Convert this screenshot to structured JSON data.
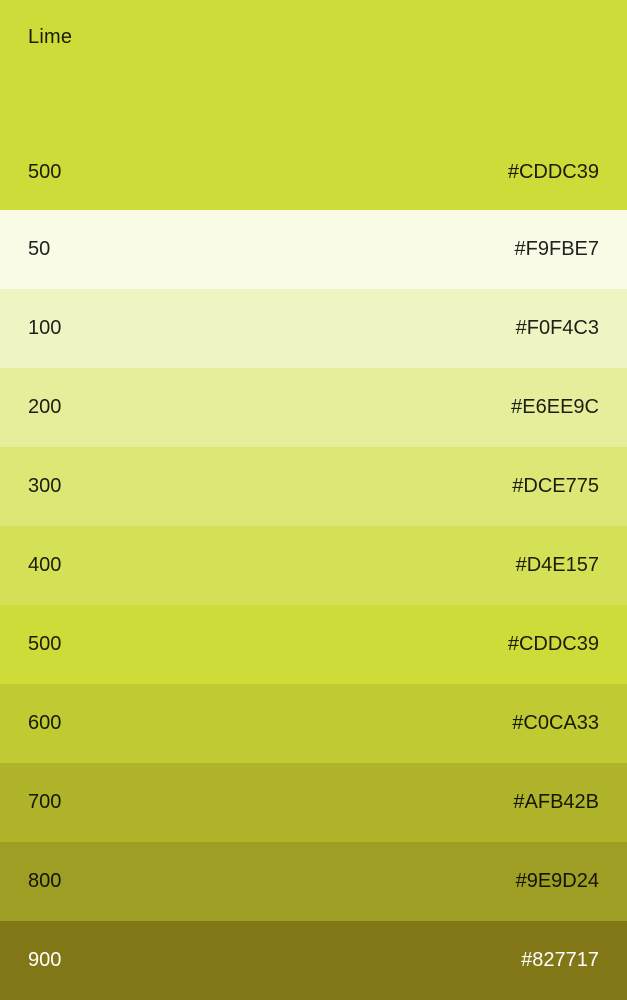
{
  "palette": {
    "name": "Lime",
    "header": {
      "shade": "500",
      "hex": "#CDDC39",
      "background": "#CDDC39",
      "text": "dark"
    },
    "rows": [
      {
        "shade": "50",
        "hex": "#F9FBE7",
        "text": "dark"
      },
      {
        "shade": "100",
        "hex": "#F0F4C3",
        "text": "dark"
      },
      {
        "shade": "200",
        "hex": "#E6EE9C",
        "text": "dark"
      },
      {
        "shade": "300",
        "hex": "#DCE775",
        "text": "dark"
      },
      {
        "shade": "400",
        "hex": "#D4E157",
        "text": "dark"
      },
      {
        "shade": "500",
        "hex": "#CDDC39",
        "text": "dark"
      },
      {
        "shade": "600",
        "hex": "#C0CA33",
        "text": "dark"
      },
      {
        "shade": "700",
        "hex": "#AFB42B",
        "text": "dark"
      },
      {
        "shade": "800",
        "hex": "#9E9D24",
        "text": "dark"
      },
      {
        "shade": "900",
        "hex": "#827717",
        "text": "light"
      }
    ]
  },
  "colors": {
    "dark_text": "rgba(0,0,0,0.87)",
    "light_text": "#FFFFFF"
  }
}
